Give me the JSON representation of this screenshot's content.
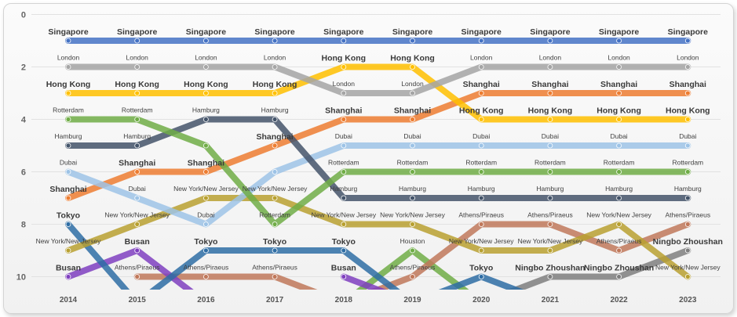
{
  "chart_data": {
    "type": "line",
    "title": "",
    "xlabel": "",
    "ylabel": "",
    "x": [
      "2014",
      "2015",
      "2016",
      "2017",
      "2018",
      "2019",
      "2020",
      "2021",
      "2022",
      "2023"
    ],
    "ylim": [
      0,
      10.5
    ],
    "y_ticks": [
      "0",
      "2",
      "4",
      "6",
      "8",
      "10"
    ],
    "y_reversed": true,
    "grid": true,
    "series": [
      {
        "name": "Singapore",
        "color": "#4472c4",
        "bold": true,
        "values": [
          1,
          1,
          1,
          1,
          1,
          1,
          1,
          1,
          1,
          1
        ],
        "labels": [
          "Singapore",
          "Singapore",
          "Singapore",
          "Singapore",
          "Singapore",
          "Singapore",
          "Singapore",
          "Singapore",
          "Singapore",
          "Singapore"
        ]
      },
      {
        "name": "London",
        "color": "#a5a5a5",
        "bold": false,
        "values": [
          2,
          2,
          2,
          2,
          3,
          3,
          2,
          2,
          2,
          2
        ],
        "labels": [
          "London",
          "London",
          "London",
          "London",
          "London",
          "London",
          "London",
          "London",
          "London",
          "London"
        ]
      },
      {
        "name": "Hong Kong",
        "color": "#ffc000",
        "bold": true,
        "values": [
          3,
          3,
          3,
          3,
          2,
          2,
          4,
          4,
          4,
          4
        ],
        "labels": [
          "Hong Kong",
          "Hong Kong",
          "Hong Kong",
          "Hong Kong",
          "Hong Kong",
          "Hong Kong",
          "Hong Kong",
          "Hong Kong",
          "Hong Kong",
          "Hong Kong"
        ]
      },
      {
        "name": "Rotterdam",
        "color": "#70ad47",
        "bold": false,
        "values": [
          4,
          4,
          5,
          8,
          6,
          6,
          6,
          6,
          6,
          6
        ],
        "labels": [
          "Rotterdam",
          "Rotterdam",
          "",
          "Rotterdam",
          "Rotterdam",
          "Rotterdam",
          "Rotterdam",
          "Rotterdam",
          "Rotterdam",
          "Rotterdam"
        ]
      },
      {
        "name": "Hamburg",
        "color": "#44546a",
        "bold": false,
        "values": [
          5,
          5,
          4,
          4,
          7,
          7,
          7,
          7,
          7,
          7
        ],
        "labels": [
          "Hamburg",
          "Hamburg",
          "Hamburg",
          "Hamburg",
          "Hamburg",
          "Hamburg",
          "Hamburg",
          "Hamburg",
          "Hamburg",
          "Hamburg"
        ]
      },
      {
        "name": "Dubai",
        "color": "#9dc3e6",
        "bold": false,
        "values": [
          6,
          7,
          8,
          6,
          5,
          5,
          5,
          5,
          5,
          5
        ],
        "labels": [
          "Dubai",
          "Dubai",
          "Dubai",
          "",
          "Dubai",
          "Dubai",
          "Dubai",
          "Dubai",
          "Dubai",
          "Dubai"
        ]
      },
      {
        "name": "Shanghai",
        "color": "#ed7d31",
        "bold": true,
        "values": [
          7,
          6,
          6,
          5,
          4,
          4,
          3,
          3,
          3,
          3
        ],
        "labels": [
          "Shanghai",
          "Shanghai",
          "Shanghai",
          "Shanghai",
          "Shanghai",
          "Shanghai",
          "Shanghai",
          "Shanghai",
          "Shanghai",
          "Shanghai"
        ]
      },
      {
        "name": "New York/New Jersey",
        "color": "#b8a030",
        "bold": false,
        "values": [
          9,
          8,
          7,
          7,
          8,
          8,
          9,
          9,
          8,
          10
        ],
        "labels": [
          "New York/New Jersey",
          "New York/New Jersey",
          "New York/New Jersey",
          "New York/New Jersey",
          "New York/New Jersey",
          "New York/New Jersey",
          "New York/New Jersey",
          "New York/New Jersey",
          "New York/New Jersey",
          "New York/New Jersey"
        ]
      },
      {
        "name": "Tokyo",
        "color": "#2e6da4",
        "bold": true,
        "values": [
          8,
          11,
          9,
          9,
          9,
          11,
          10,
          11,
          null,
          null
        ],
        "labels": [
          "Tokyo",
          "",
          "Tokyo",
          "Tokyo",
          "Tokyo",
          "",
          "Tokyo",
          "",
          "",
          ""
        ]
      },
      {
        "name": "Busan",
        "color": "#7f3fbf",
        "bold": true,
        "values": [
          10,
          9,
          11,
          null,
          10,
          11,
          null,
          null,
          null,
          null
        ],
        "labels": [
          "Busan",
          "Busan",
          "",
          "",
          "Busan",
          "",
          "",
          "",
          "",
          ""
        ]
      },
      {
        "name": "Athens/Piraeus",
        "color": "#c0785a",
        "bold": false,
        "values": [
          null,
          10,
          10,
          10,
          11,
          10,
          8,
          8,
          9,
          8
        ],
        "labels": [
          "",
          "Athens/Piraeus",
          "Athens/Piraeus",
          "Athens/Piraeus",
          "",
          "Athens/Piraeus",
          "Athens/Piraeus",
          "Athens/Piraeus",
          "Athens/Piraeus",
          "Athens/Piraeus"
        ]
      },
      {
        "name": "Houston",
        "color": "#70ad47",
        "bold": false,
        "values": [
          null,
          null,
          null,
          null,
          11,
          9,
          11,
          null,
          null,
          null
        ],
        "labels": [
          "",
          "",
          "",
          "",
          "",
          "Houston",
          "",
          "",
          "",
          ""
        ]
      },
      {
        "name": "Ningbo Zhoushan",
        "color": "#7f7f7f",
        "bold": true,
        "values": [
          null,
          null,
          null,
          null,
          null,
          null,
          11,
          10,
          10,
          9
        ],
        "labels": [
          "",
          "",
          "",
          "",
          "",
          "",
          "",
          "Ningbo Zhoushan",
          "Ningbo Zhoushan",
          "Ningbo Zhoushan"
        ]
      }
    ]
  }
}
